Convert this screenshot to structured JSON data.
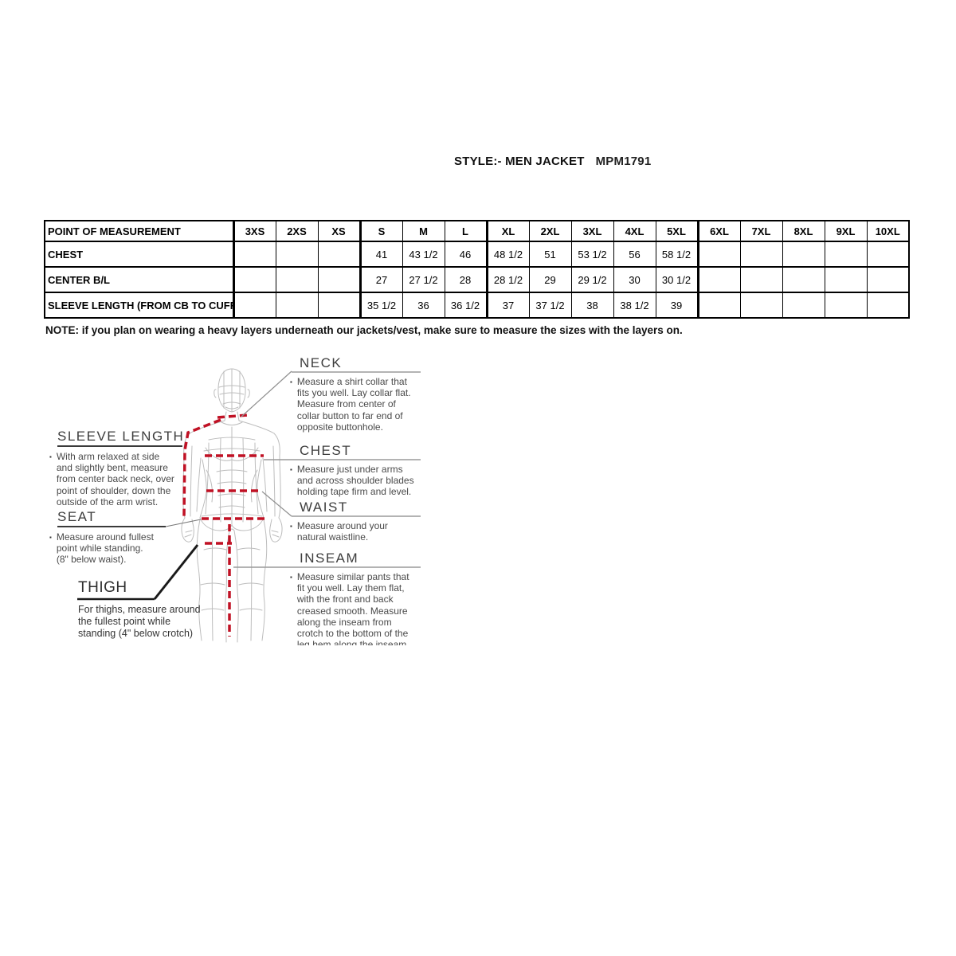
{
  "header": {
    "style_label": "STYLE:- MEN JACKET",
    "style_code": "MPM1791"
  },
  "size_table": {
    "columns": [
      "POINT OF MEASUREMENT",
      "3XS",
      "2XS",
      "XS",
      "S",
      "M",
      "L",
      "XL",
      "2XL",
      "3XL",
      "4XL",
      "5XL",
      "6XL",
      "7XL",
      "8XL",
      "9XL",
      "10XL"
    ],
    "rows": [
      {
        "label": "CHEST",
        "values": [
          "",
          "",
          "",
          "41",
          "43 1/2",
          "46",
          "48 1/2",
          "51",
          "53 1/2",
          "56",
          "58 1/2",
          "",
          "",
          "",
          "",
          ""
        ]
      },
      {
        "label": "CENTER B/L",
        "values": [
          "",
          "",
          "",
          "27",
          "27 1/2",
          "28",
          "28 1/2",
          "29",
          "29 1/2",
          "30",
          "30 1/2",
          "",
          "",
          "",
          "",
          ""
        ]
      },
      {
        "label": "SLEEVE LENGTH (FROM CB TO CUFF)",
        "values": [
          "",
          "",
          "",
          "35 1/2",
          "36",
          "36 1/2",
          "37",
          "37 1/2",
          "38",
          "38 1/2",
          "39",
          "",
          "",
          "",
          "",
          ""
        ]
      }
    ]
  },
  "note": "NOTE: if you plan on wearing a heavy layers underneath our jackets/vest, make sure to measure the sizes with the layers on.",
  "diagram": {
    "left_labels": [
      {
        "heading": "SLEEVE LENGTH",
        "bullet": "▪",
        "text": "With arm relaxed at side\nand slightly bent, measure\nfrom center back neck, over\npoint of shoulder, down the\noutside of the arm wrist."
      },
      {
        "heading": "SEAT",
        "bullet": "▪",
        "text": "Measure around fullest\npoint while standing.\n(8\" below waist)."
      },
      {
        "heading": "THIGH",
        "bullet": "",
        "text": "For thighs, measure around\nthe fullest point while\nstanding (4\" below crotch)"
      }
    ],
    "right_labels": [
      {
        "heading": "NECK",
        "bullet": "▪",
        "text": "Measure a shirt collar that\nfits you well. Lay collar flat.\nMeasure from center of\ncollar button to far end of\nopposite buttonhole."
      },
      {
        "heading": "CHEST",
        "bullet": "▪",
        "text": "Measure just under arms\nand across shoulder blades\nholding tape firm and level."
      },
      {
        "heading": "WAIST",
        "bullet": "▪",
        "text": "Measure around your\nnatural waistline."
      },
      {
        "heading": "INSEAM",
        "bullet": "▪",
        "text": "Measure similar pants that\nfit you well. Lay them flat,\nwith the front and back\ncreased smooth. Measure\nalong the inseam from\ncrotch to the bottom of the\nleg hem along the inseam"
      }
    ],
    "colors": {
      "measure_line": "#c01124",
      "figure_line": "#bdbdbd",
      "connector": "#8f8f8f",
      "dark_rule": "#3a3a3a",
      "thick_rule": "#1a1a1a"
    }
  }
}
